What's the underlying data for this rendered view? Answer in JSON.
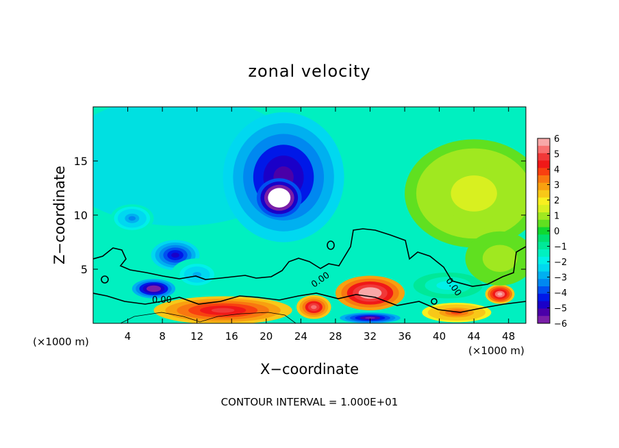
{
  "chart_data": {
    "type": "heatmap",
    "title": "zonal velocity",
    "xlabel": "X−coordinate",
    "ylabel": "Z−coordinate",
    "x_unit_left": "(×1000 m)",
    "x_unit_right": "(×1000 m)",
    "footer": "CONTOUR INTERVAL = 1.000E+01",
    "xlim": [
      0,
      50
    ],
    "ylim": [
      0,
      20
    ],
    "xticks": [
      4,
      8,
      12,
      16,
      20,
      24,
      28,
      32,
      36,
      40,
      44,
      48
    ],
    "yticks": [
      5,
      10,
      15
    ],
    "contour_labels": [
      "0.00",
      "0.00",
      "0.00"
    ],
    "colorbar": {
      "range": [
        -6,
        6
      ],
      "tick_labels": [
        "6",
        "5",
        "4",
        "3",
        "2",
        "1",
        "0",
        "−1",
        "−2",
        "−3",
        "−4",
        "−5",
        "−6"
      ],
      "levels": [
        {
          "value": -6,
          "color": "#7a1fa8"
        },
        {
          "value": -5.5,
          "color": "#4a00a8"
        },
        {
          "value": -5,
          "color": "#1a00c8"
        },
        {
          "value": -4.5,
          "color": "#0018e8"
        },
        {
          "value": -4,
          "color": "#0050f0"
        },
        {
          "value": -3.5,
          "color": "#0088f0"
        },
        {
          "value": -3,
          "color": "#00b0f0"
        },
        {
          "value": -2.5,
          "color": "#00d8f0"
        },
        {
          "value": -2,
          "color": "#00f0e8"
        },
        {
          "value": -1.5,
          "color": "#00f0c0"
        },
        {
          "value": -1,
          "color": "#00e898"
        },
        {
          "value": -0.5,
          "color": "#00e070"
        },
        {
          "value": 0,
          "color": "#10d830"
        },
        {
          "value": 0.5,
          "color": "#60e020"
        },
        {
          "value": 1,
          "color": "#a0e820"
        },
        {
          "value": 1.5,
          "color": "#d8f020"
        },
        {
          "value": 2,
          "color": "#f8f020"
        },
        {
          "value": 2.5,
          "color": "#f8c818"
        },
        {
          "value": 3,
          "color": "#f8a010"
        },
        {
          "value": 3.5,
          "color": "#f87810"
        },
        {
          "value": 4,
          "color": "#f84010"
        },
        {
          "value": 4.5,
          "color": "#f01818"
        },
        {
          "value": 5,
          "color": "#f03838"
        },
        {
          "value": 5.5,
          "color": "#f87070"
        },
        {
          "value": 6,
          "color": "#f8a8a8"
        }
      ]
    },
    "field_blobs": [
      {
        "x": 22,
        "z": 13.5,
        "rx": 7,
        "rz": 6,
        "value": -5.5,
        "name": "upper-negative-jet"
      },
      {
        "x": 21.5,
        "z": 11.6,
        "rx": 2.6,
        "rz": 1.8,
        "value": -9,
        "name": "jet-core"
      },
      {
        "x": 9.5,
        "z": 6.3,
        "rx": 2.8,
        "rz": 1.4,
        "value": -5,
        "name": "mid-negative-eddy"
      },
      {
        "x": 7,
        "z": 3.2,
        "rx": 2.5,
        "rz": 0.9,
        "value": -6.5,
        "name": "low-negative-eddy"
      },
      {
        "x": 4.5,
        "z": 9.7,
        "rx": 2.5,
        "rz": 1.3,
        "value": -3.5,
        "name": "left-negative-patch"
      },
      {
        "x": 12,
        "z": 4.5,
        "rx": 3,
        "rz": 1.5,
        "value": -3,
        "name": "mid-low-negative-patch"
      },
      {
        "x": 32,
        "z": 2.8,
        "rx": 4,
        "rz": 1.6,
        "value": 6.5,
        "name": "positive-core-32"
      },
      {
        "x": 25.5,
        "z": 1.5,
        "rx": 2,
        "rz": 1.1,
        "value": 5.5,
        "name": "positive-core-25"
      },
      {
        "x": 15,
        "z": 1.2,
        "rx": 8,
        "rz": 1.3,
        "value": 5,
        "name": "surface-positive-band"
      },
      {
        "x": 47,
        "z": 2.7,
        "rx": 1.7,
        "rz": 0.9,
        "value": 6,
        "name": "positive-core-47"
      },
      {
        "x": 42,
        "z": 1.0,
        "rx": 4,
        "rz": 0.9,
        "value": 4,
        "name": "positive-surface-42"
      },
      {
        "x": 32,
        "z": 0.5,
        "rx": 3.5,
        "rz": 0.5,
        "value": -6,
        "name": "negative-surface-32"
      },
      {
        "x": 41,
        "z": 3.5,
        "rx": 4,
        "rz": 1.2,
        "value": -2,
        "name": "negative-patch-41"
      },
      {
        "x": 44,
        "z": 12,
        "rx": 8,
        "rz": 5,
        "value": 1.5,
        "name": "positive-region-upper-right"
      },
      {
        "x": 47,
        "z": 6,
        "rx": 4,
        "rz": 2.5,
        "value": 1,
        "name": "positive-region-right"
      }
    ]
  }
}
